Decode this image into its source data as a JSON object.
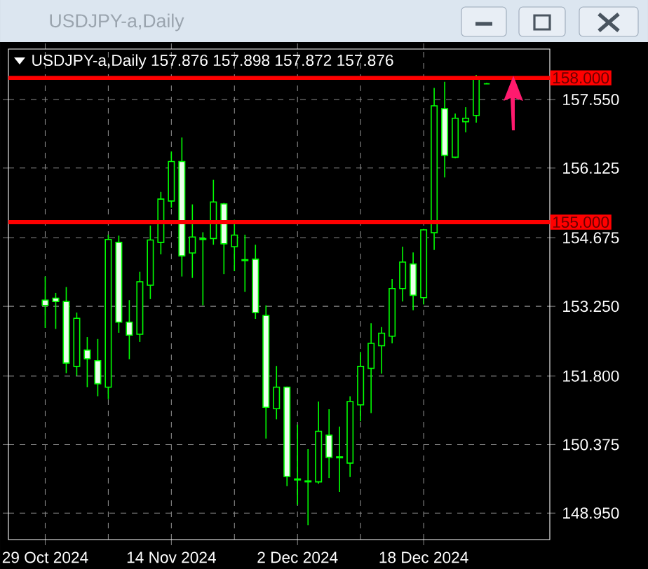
{
  "chart_data": {
    "type": "candlestick",
    "title": "USDJPY-a,Daily",
    "subtitle": "USDJPY-a,Daily  157.876 157.898 157.872 157.876",
    "categories": [
      "29 Oct 2024",
      null,
      null,
      null,
      null,
      null,
      null,
      null,
      null,
      null,
      null,
      null,
      "14 Nov 2024",
      null,
      null,
      null,
      null,
      null,
      null,
      null,
      null,
      null,
      null,
      null,
      "2 Dec 2024",
      null,
      null,
      null,
      null,
      null,
      null,
      null,
      null,
      null,
      null,
      null,
      "18 Dec 2024",
      null,
      null,
      null,
      null,
      null,
      null
    ],
    "ohlc": [
      [
        153.38,
        153.87,
        152.8,
        153.27
      ],
      [
        153.42,
        153.53,
        152.78,
        153.35
      ],
      [
        153.35,
        153.65,
        151.86,
        152.07
      ],
      [
        152.0,
        153.12,
        151.81,
        153.0
      ],
      [
        152.34,
        152.61,
        151.57,
        152.16
      ],
      [
        152.12,
        152.57,
        151.38,
        151.64
      ],
      [
        151.57,
        154.74,
        151.32,
        154.64
      ],
      [
        154.58,
        154.72,
        152.7,
        152.92
      ],
      [
        152.92,
        153.38,
        152.15,
        152.65
      ],
      [
        152.67,
        153.97,
        152.51,
        153.76
      ],
      [
        153.69,
        154.93,
        153.4,
        154.63
      ],
      [
        154.58,
        155.63,
        154.33,
        155.48
      ],
      [
        155.44,
        156.47,
        155.3,
        156.26
      ],
      [
        156.26,
        156.76,
        153.87,
        154.3
      ],
      [
        154.36,
        155.37,
        153.84,
        154.69
      ],
      [
        154.66,
        154.79,
        153.27,
        154.64
      ],
      [
        154.66,
        155.88,
        154.53,
        155.42
      ],
      [
        155.38,
        155.4,
        153.92,
        154.55
      ],
      [
        154.49,
        155.05,
        153.98,
        154.73
      ],
      [
        154.22,
        154.74,
        153.55,
        154.2
      ],
      [
        154.23,
        154.53,
        152.99,
        153.12
      ],
      [
        153.06,
        153.27,
        150.5,
        151.15
      ],
      [
        151.12,
        152.01,
        150.9,
        151.57
      ],
      [
        151.57,
        151.58,
        149.51,
        149.71
      ],
      [
        149.66,
        150.79,
        149.12,
        149.64
      ],
      [
        149.62,
        150.28,
        148.7,
        149.6
      ],
      [
        149.6,
        151.27,
        149.56,
        150.65
      ],
      [
        150.57,
        151.11,
        149.68,
        150.11
      ],
      [
        150.12,
        150.75,
        149.39,
        150.1
      ],
      [
        149.99,
        151.38,
        149.7,
        151.27
      ],
      [
        151.2,
        152.3,
        150.86,
        152.0
      ],
      [
        151.96,
        152.9,
        151.03,
        152.48
      ],
      [
        152.43,
        152.82,
        151.85,
        152.69
      ],
      [
        152.63,
        153.82,
        152.48,
        153.62
      ],
      [
        153.62,
        154.49,
        153.35,
        154.17
      ],
      [
        154.13,
        154.37,
        153.17,
        153.48
      ],
      [
        153.43,
        154.86,
        153.29,
        154.84
      ],
      [
        154.78,
        157.79,
        154.42,
        157.42
      ],
      [
        157.36,
        157.92,
        155.93,
        156.39
      ],
      [
        156.35,
        157.26,
        156.33,
        157.16
      ],
      [
        157.09,
        157.39,
        156.87,
        157.16
      ],
      [
        157.22,
        158.06,
        157.07,
        158.01
      ],
      [
        157.876,
        157.898,
        157.872,
        157.876
      ]
    ],
    "color": "#00ff00",
    "ylim": [
      148.4,
      158.6
    ],
    "yticks": [
      {
        "value": 148.95,
        "label": "148.950"
      },
      {
        "value": 150.375,
        "label": "150.375"
      },
      {
        "value": 151.8,
        "label": "151.800"
      },
      {
        "value": 153.25,
        "label": "153.250"
      },
      {
        "value": 154.675,
        "label": "154.675"
      },
      {
        "value": 156.125,
        "label": "156.125"
      },
      {
        "value": 157.55,
        "label": "157.550"
      }
    ],
    "ref_lines": [
      {
        "axis": "y",
        "value": 158,
        "label": "158.000",
        "color": "#ff0000"
      },
      {
        "axis": "y",
        "value": 155,
        "label": "155.000",
        "color": "#ff0000"
      }
    ],
    "grid": true
  }
}
